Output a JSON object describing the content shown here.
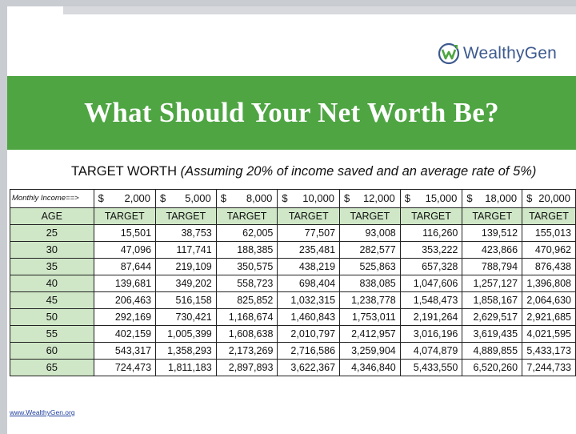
{
  "brand": {
    "name": "WealthyGen",
    "logo_icon": "wealthygen-w-check-logo",
    "accent": "#4ea542",
    "logo_color": "#3d5a8f"
  },
  "banner_title": "What Should Your Net Worth Be?",
  "subtitle": {
    "main": "TARGET WORTH",
    "note": "(Assuming 20% of income saved and an average rate of 5%)"
  },
  "table": {
    "income_label": "Monthly Income==>",
    "incomes": [
      {
        "sym": "$",
        "amt": "2,000"
      },
      {
        "sym": "$",
        "amt": "5,000"
      },
      {
        "sym": "$",
        "amt": "8,000"
      },
      {
        "sym": "$",
        "amt": "10,000"
      },
      {
        "sym": "$",
        "amt": "12,000"
      },
      {
        "sym": "$",
        "amt": "15,000"
      },
      {
        "sym": "$",
        "amt": "18,000"
      },
      {
        "sym": "$",
        "amt": "20,000"
      }
    ],
    "age_header": "AGE",
    "target_header": "TARGET",
    "rows": [
      {
        "age": "25",
        "values": [
          "15,501",
          "38,753",
          "62,005",
          "77,507",
          "93,008",
          "116,260",
          "139,512",
          "155,013"
        ]
      },
      {
        "age": "30",
        "values": [
          "47,096",
          "117,741",
          "188,385",
          "235,481",
          "282,577",
          "353,222",
          "423,866",
          "470,962"
        ]
      },
      {
        "age": "35",
        "values": [
          "87,644",
          "219,109",
          "350,575",
          "438,219",
          "525,863",
          "657,328",
          "788,794",
          "876,438"
        ]
      },
      {
        "age": "40",
        "values": [
          "139,681",
          "349,202",
          "558,723",
          "698,404",
          "838,085",
          "1,047,606",
          "1,257,127",
          "1,396,808"
        ]
      },
      {
        "age": "45",
        "values": [
          "206,463",
          "516,158",
          "825,852",
          "1,032,315",
          "1,238,778",
          "1,548,473",
          "1,858,167",
          "2,064,630"
        ]
      },
      {
        "age": "50",
        "values": [
          "292,169",
          "730,421",
          "1,168,674",
          "1,460,843",
          "1,753,011",
          "2,191,264",
          "2,629,517",
          "2,921,685"
        ]
      },
      {
        "age": "55",
        "values": [
          "402,159",
          "1,005,399",
          "1,608,638",
          "2,010,797",
          "2,412,957",
          "3,016,196",
          "3,619,435",
          "4,021,595"
        ]
      },
      {
        "age": "60",
        "values": [
          "543,317",
          "1,358,293",
          "2,173,269",
          "2,716,586",
          "3,259,904",
          "4,074,879",
          "4,889,855",
          "5,433,173"
        ]
      },
      {
        "age": "65",
        "values": [
          "724,473",
          "1,811,183",
          "2,897,893",
          "3,622,367",
          "4,346,840",
          "5,433,550",
          "6,520,260",
          "7,244,733"
        ]
      }
    ]
  },
  "footer_link": "www.WealthyGen.org"
}
